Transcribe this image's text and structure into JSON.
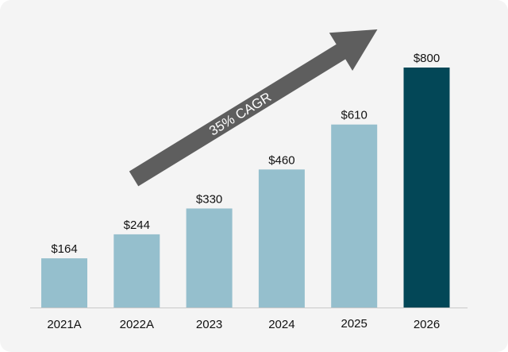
{
  "chart_data": {
    "type": "bar",
    "title": "",
    "xlabel": "",
    "ylabel": "",
    "categories": [
      "2021A",
      "2022A",
      "2023",
      "2024",
      "2025",
      "2026"
    ],
    "values": [
      164,
      244,
      330,
      460,
      610,
      800
    ],
    "value_labels": [
      "$164",
      "$244",
      "$330",
      "$460",
      "$610",
      "$800"
    ],
    "ylim": [
      0,
      800
    ],
    "grid": false,
    "annotation": "35% CAGR",
    "colors": {
      "background": "#f4f4f4",
      "bar": "#95bfcd",
      "highlight_bar": "#034757",
      "arrow": "#5e5e5e",
      "axis": "#c9c9c9",
      "text": "#111111"
    },
    "highlight_index": 5
  }
}
